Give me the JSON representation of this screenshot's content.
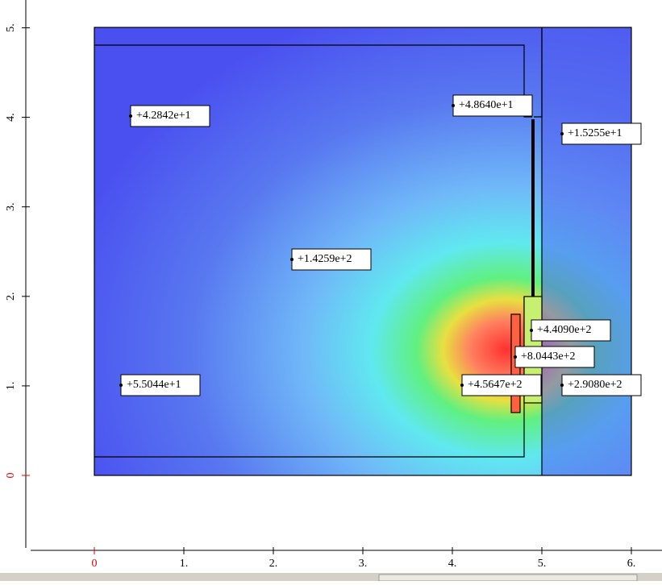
{
  "plot": {
    "xticks": [
      {
        "value": 0,
        "label": "0"
      },
      {
        "value": 1,
        "label": "1."
      },
      {
        "value": 2,
        "label": "2."
      },
      {
        "value": 3,
        "label": "3."
      },
      {
        "value": 4,
        "label": "4."
      },
      {
        "value": 5,
        "label": "5."
      },
      {
        "value": 6,
        "label": "6."
      }
    ],
    "yticks": [
      {
        "value": 0,
        "label": "0"
      },
      {
        "value": 1,
        "label": "1."
      },
      {
        "value": 2,
        "label": "2."
      },
      {
        "value": 3,
        "label": "3."
      },
      {
        "value": 4,
        "label": "4."
      },
      {
        "value": 5,
        "label": "5."
      }
    ],
    "probes": [
      "+4.2842e+1",
      "+4.8640e+1",
      "+1.5255e+1",
      "+1.4259e+2",
      "+4.4090e+2",
      "+8.0443e+2",
      "+5.5044e+1",
      "+4.5647e+2",
      "+2.9080e+2"
    ]
  }
}
